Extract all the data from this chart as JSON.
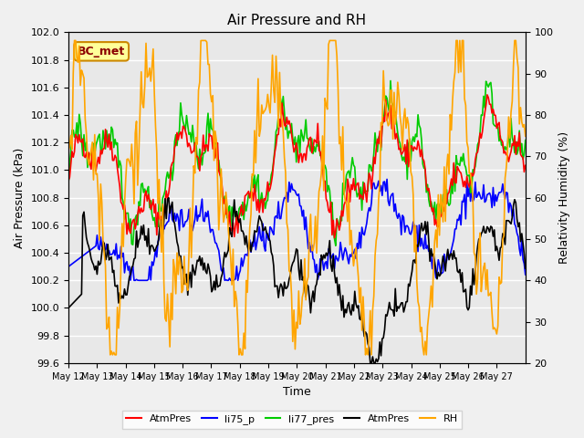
{
  "title": "Air Pressure and RH",
  "xlabel": "Time",
  "ylabel_left": "Air Pressure (kPa)",
  "ylabel_right": "Relativity Humidity (%)",
  "ylim_left": [
    99.6,
    102.0
  ],
  "ylim_right": [
    20,
    100
  ],
  "yticks_left": [
    99.6,
    99.8,
    100.0,
    100.2,
    100.4,
    100.6,
    100.8,
    101.0,
    101.2,
    101.4,
    101.6,
    101.8,
    102.0
  ],
  "yticks_right": [
    20,
    30,
    40,
    50,
    60,
    70,
    80,
    90,
    100
  ],
  "xtick_labels": [
    "May 12",
    "May 13",
    "May 14",
    "May 15",
    "May 16",
    "May 17",
    "May 18",
    "May 19",
    "May 20",
    "May 21",
    "May 22",
    "May 23",
    "May 24",
    "May 25",
    "May 26",
    "May 27"
  ],
  "colors": {
    "AtmPres_red": "#ff0000",
    "li75_p": "#0000ff",
    "li77_pres": "#00cc00",
    "AtmPres_black": "#000000",
    "RH": "#ffa500"
  },
  "legend_labels": [
    "AtmPres",
    "li75_p",
    "li77_pres",
    "AtmPres",
    "RH"
  ],
  "bc_met_label": "BC_met",
  "bc_met_bg": "#ffff99",
  "bc_met_border": "#cc8800",
  "bg_color": "#e8e8e8",
  "grid_color": "#ffffff",
  "linewidth": 1.2
}
